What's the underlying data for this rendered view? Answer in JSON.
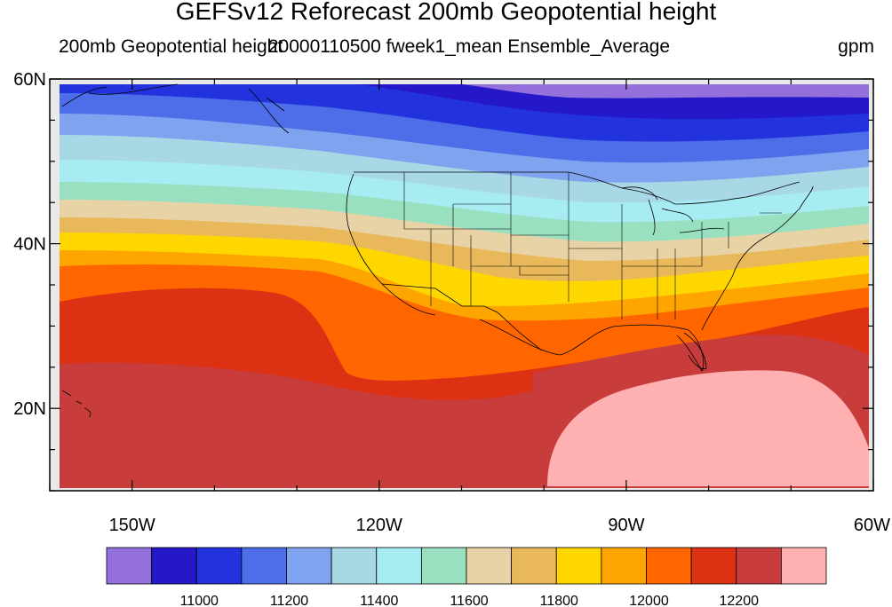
{
  "title": "GEFSv12 Reforecast 200mb Geopotential height",
  "subtitle_left": "200mb Geopotential height",
  "subtitle_center": "20000110500 fweek1_mean Ensemble_Average",
  "subtitle_right": "gpm",
  "lat_ticks": [
    {
      "label": "60N",
      "lat": 60
    },
    {
      "label": "40N",
      "lat": 40
    },
    {
      "label": "20N",
      "lat": 20
    }
  ],
  "lon_ticks": [
    {
      "label": "150W",
      "lon": -150
    },
    {
      "label": "120W",
      "lon": -120
    },
    {
      "label": "90W",
      "lon": -90
    },
    {
      "label": "60W",
      "lon": -60
    }
  ],
  "colorbar": {
    "colors": [
      "#9370db",
      "#2418c8",
      "#2233dd",
      "#4d6ee8",
      "#7fa3ee",
      "#a8d8e6",
      "#a6ecf2",
      "#98e0c0",
      "#e8d3a6",
      "#e9b85a",
      "#ffd700",
      "#ffa500",
      "#ff6600",
      "#dc3213",
      "#c83c3c",
      "#ffb0b0"
    ],
    "labels": [
      {
        "text": "11000",
        "index": 2
      },
      {
        "text": "11200",
        "index": 4
      },
      {
        "text": "11400",
        "index": 6
      },
      {
        "text": "11600",
        "index": 8
      },
      {
        "text": "11800",
        "index": 10
      },
      {
        "text": "12000",
        "index": 12
      },
      {
        "text": "12200",
        "index": 14
      }
    ]
  },
  "map": {
    "land_mask_color": "#d3d3d3",
    "boundary_color": "#000000"
  }
}
